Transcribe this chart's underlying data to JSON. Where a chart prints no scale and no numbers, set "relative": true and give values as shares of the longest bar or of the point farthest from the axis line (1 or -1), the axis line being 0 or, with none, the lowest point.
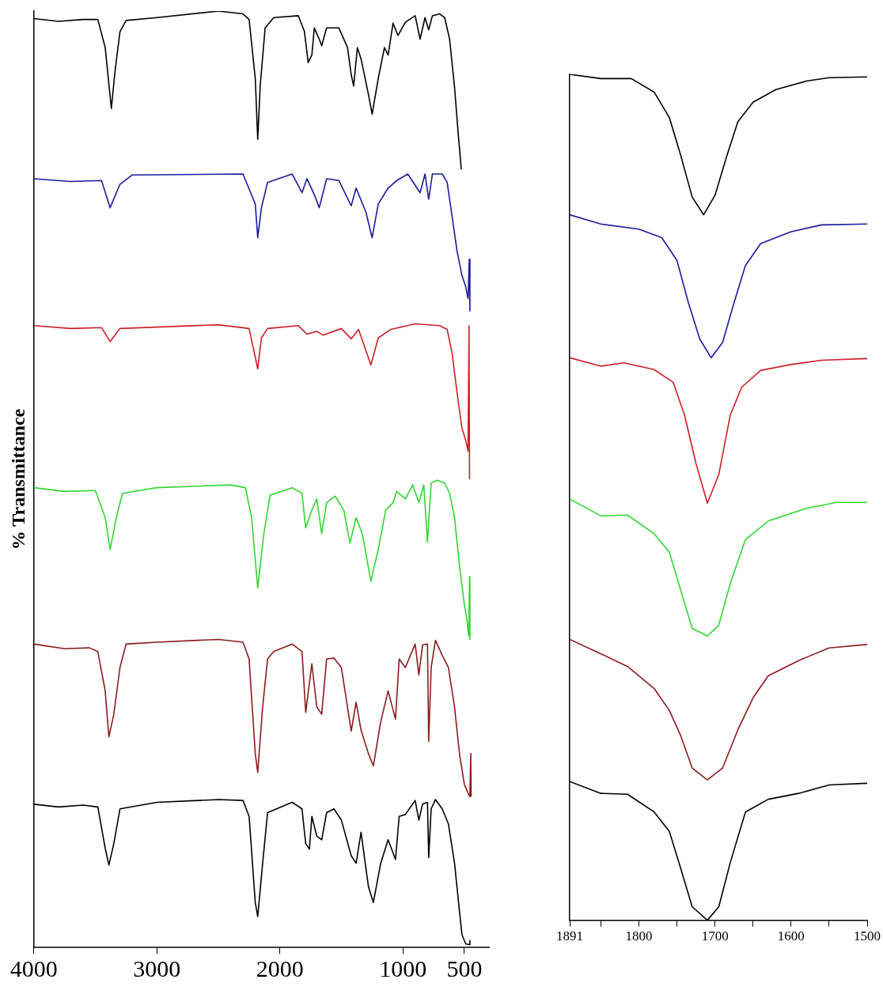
{
  "chart_data": [
    {
      "type": "line",
      "relative": true,
      "ylabel": "% Transmittance",
      "xlim": [
        4000,
        300
      ],
      "xticks": [
        4000,
        3000,
        2000,
        1000,
        500
      ],
      "series": [
        {
          "color": "#000000",
          "x": [
            4000,
            3800,
            3600,
            3480,
            3420,
            3370,
            3340,
            3300,
            3250,
            3000,
            2500,
            2300,
            2250,
            2200,
            2180,
            2160,
            2120,
            2050,
            1850,
            1800,
            1770,
            1740,
            1720,
            1680,
            1660,
            1620,
            1520,
            1450,
            1420,
            1400,
            1370,
            1340,
            1280,
            1250,
            1200,
            1150,
            1120,
            1080,
            1040,
            980,
            900,
            860,
            820,
            790,
            760,
            700,
            660,
            620,
            580,
            550,
            525
          ],
          "values": [
            0.992,
            0.989,
            0.991,
            0.991,
            0.961,
            0.896,
            0.936,
            0.978,
            0.99,
            0.993,
            1.0,
            0.997,
            0.991,
            0.928,
            0.863,
            0.92,
            0.982,
            0.993,
            0.995,
            0.978,
            0.945,
            0.953,
            0.982,
            0.97,
            0.963,
            0.982,
            0.982,
            0.961,
            0.932,
            0.92,
            0.961,
            0.949,
            0.911,
            0.89,
            0.928,
            0.961,
            0.953,
            0.987,
            0.974,
            0.988,
            0.995,
            0.97,
            0.993,
            0.98,
            0.995,
            0.997,
            0.993,
            0.97,
            0.919,
            0.869,
            0.831
          ]
        },
        {
          "color": "#1c1c9c",
          "x": [
            4000,
            3700,
            3450,
            3380,
            3300,
            3200,
            2300,
            2200,
            2180,
            2150,
            2100,
            1900,
            1820,
            1780,
            1720,
            1680,
            1620,
            1520,
            1420,
            1380,
            1300,
            1250,
            1200,
            1120,
            1050,
            960,
            860,
            820,
            790,
            760,
            680,
            640,
            600,
            560,
            520,
            490,
            470,
            460,
            455
          ],
          "values": [
            0.821,
            0.818,
            0.819,
            0.79,
            0.815,
            0.825,
            0.826,
            0.794,
            0.758,
            0.79,
            0.817,
            0.826,
            0.806,
            0.821,
            0.804,
            0.79,
            0.821,
            0.819,
            0.792,
            0.811,
            0.785,
            0.758,
            0.794,
            0.811,
            0.819,
            0.826,
            0.806,
            0.826,
            0.799,
            0.826,
            0.826,
            0.817,
            0.781,
            0.744,
            0.718,
            0.706,
            0.693,
            0.735,
            0.68
          ]
        },
        {
          "color": "#cc1f2a",
          "x": [
            4000,
            3700,
            3450,
            3380,
            3300,
            2500,
            2250,
            2180,
            2150,
            2100,
            1850,
            1780,
            1700,
            1650,
            1500,
            1420,
            1360,
            1260,
            1200,
            1100,
            900,
            700,
            640,
            600,
            560,
            520,
            490,
            470,
            462,
            458
          ],
          "values": [
            0.664,
            0.661,
            0.662,
            0.647,
            0.661,
            0.665,
            0.661,
            0.618,
            0.651,
            0.661,
            0.664,
            0.655,
            0.658,
            0.654,
            0.661,
            0.65,
            0.66,
            0.622,
            0.651,
            0.66,
            0.666,
            0.664,
            0.66,
            0.635,
            0.593,
            0.555,
            0.542,
            0.53,
            0.664,
            0.5
          ]
        },
        {
          "color": "#33d633",
          "x": [
            4000,
            3750,
            3500,
            3420,
            3380,
            3330,
            3280,
            3000,
            2400,
            2280,
            2230,
            2180,
            2130,
            2080,
            1900,
            1820,
            1790,
            1740,
            1700,
            1660,
            1620,
            1550,
            1480,
            1430,
            1380,
            1330,
            1260,
            1200,
            1140,
            1080,
            1050,
            980,
            920,
            870,
            830,
            800,
            770,
            720,
            660,
            620,
            580,
            540,
            500,
            480,
            465,
            458,
            455
          ],
          "values": [
            0.491,
            0.487,
            0.488,
            0.459,
            0.425,
            0.459,
            0.485,
            0.491,
            0.494,
            0.491,
            0.459,
            0.384,
            0.442,
            0.483,
            0.491,
            0.485,
            0.448,
            0.467,
            0.479,
            0.442,
            0.475,
            0.482,
            0.467,
            0.432,
            0.459,
            0.442,
            0.391,
            0.425,
            0.467,
            0.475,
            0.487,
            0.479,
            0.494,
            0.475,
            0.494,
            0.433,
            0.496,
            0.499,
            0.496,
            0.485,
            0.459,
            0.408,
            0.366,
            0.35,
            0.333,
            0.396,
            0.329
          ]
        },
        {
          "color": "#8b1c1c",
          "x": [
            4000,
            3750,
            3550,
            3480,
            3420,
            3390,
            3350,
            3300,
            3250,
            3000,
            2500,
            2300,
            2250,
            2200,
            2180,
            2140,
            2100,
            2050,
            1900,
            1820,
            1790,
            1740,
            1700,
            1660,
            1620,
            1560,
            1500,
            1420,
            1380,
            1340,
            1280,
            1240,
            1180,
            1120,
            1060,
            1030,
            980,
            900,
            870,
            840,
            800,
            790,
            770,
            735,
            680,
            630,
            580,
            540,
            500,
            470,
            455,
            448,
            445
          ],
          "values": [
            0.324,
            0.319,
            0.32,
            0.316,
            0.274,
            0.225,
            0.249,
            0.299,
            0.324,
            0.326,
            0.329,
            0.326,
            0.308,
            0.207,
            0.187,
            0.257,
            0.308,
            0.316,
            0.324,
            0.316,
            0.251,
            0.303,
            0.257,
            0.249,
            0.308,
            0.309,
            0.299,
            0.231,
            0.262,
            0.232,
            0.207,
            0.194,
            0.241,
            0.274,
            0.244,
            0.308,
            0.299,
            0.324,
            0.291,
            0.323,
            0.324,
            0.22,
            0.299,
            0.328,
            0.312,
            0.299,
            0.257,
            0.207,
            0.174,
            0.165,
            0.161,
            0.207,
            0.161
          ]
        },
        {
          "color": "#000000",
          "x": [
            4000,
            3800,
            3600,
            3480,
            3420,
            3390,
            3350,
            3300,
            3000,
            2500,
            2300,
            2250,
            2200,
            2180,
            2140,
            2100,
            1900,
            1820,
            1790,
            1760,
            1740,
            1700,
            1660,
            1620,
            1560,
            1500,
            1420,
            1380,
            1340,
            1280,
            1240,
            1180,
            1120,
            1060,
            1030,
            980,
            900,
            870,
            840,
            800,
            790,
            770,
            735,
            680,
            630,
            580,
            540,
            520,
            490,
            460,
            455
          ],
          "values": [
            0.153,
            0.15,
            0.152,
            0.15,
            0.106,
            0.088,
            0.111,
            0.148,
            0.155,
            0.158,
            0.157,
            0.14,
            0.048,
            0.033,
            0.09,
            0.144,
            0.155,
            0.148,
            0.111,
            0.105,
            0.14,
            0.119,
            0.115,
            0.144,
            0.148,
            0.136,
            0.098,
            0.09,
            0.123,
            0.065,
            0.048,
            0.09,
            0.115,
            0.094,
            0.14,
            0.142,
            0.157,
            0.136,
            0.153,
            0.155,
            0.096,
            0.148,
            0.158,
            0.148,
            0.132,
            0.09,
            0.039,
            0.014,
            0.004,
            0.003,
            0.008
          ]
        }
      ]
    },
    {
      "type": "line",
      "relative": true,
      "xlim": [
        1891,
        1500
      ],
      "xticks": [
        1891,
        {
          "value": 1850,
          "label": null
        },
        1800,
        {
          "value": 1750,
          "label": null
        },
        1700,
        {
          "value": 1650,
          "label": null
        },
        1600,
        {
          "value": 1550,
          "label": null
        },
        1500
      ],
      "series": [
        {
          "color": "#000000",
          "x": [
            1891,
            1850,
            1810,
            1780,
            1760,
            1745,
            1730,
            1715,
            1700,
            1685,
            1670,
            1650,
            1620,
            1580,
            1550,
            1500
          ],
          "values": [
            1.0,
            0.995,
            0.995,
            0.979,
            0.949,
            0.904,
            0.855,
            0.834,
            0.857,
            0.902,
            0.944,
            0.967,
            0.982,
            0.992,
            0.996,
            0.997
          ]
        },
        {
          "color": "#1c1c9c",
          "x": [
            1891,
            1850,
            1800,
            1770,
            1750,
            1735,
            1720,
            1705,
            1690,
            1675,
            1660,
            1640,
            1600,
            1560,
            1500
          ],
          "values": [
            0.834,
            0.823,
            0.817,
            0.807,
            0.78,
            0.73,
            0.687,
            0.665,
            0.683,
            0.73,
            0.774,
            0.8,
            0.814,
            0.822,
            0.823
          ]
        },
        {
          "color": "#cc1f2a",
          "x": [
            1891,
            1850,
            1820,
            1780,
            1755,
            1740,
            1725,
            1710,
            1695,
            1680,
            1665,
            1640,
            1600,
            1560,
            1500
          ],
          "values": [
            0.665,
            0.655,
            0.659,
            0.651,
            0.636,
            0.597,
            0.54,
            0.493,
            0.527,
            0.597,
            0.63,
            0.65,
            0.657,
            0.662,
            0.664
          ]
        },
        {
          "color": "#33d633",
          "x": [
            1891,
            1850,
            1815,
            1780,
            1760,
            1745,
            1730,
            1710,
            1695,
            1680,
            1660,
            1630,
            1580,
            1540,
            1500
          ],
          "values": [
            0.498,
            0.478,
            0.479,
            0.457,
            0.435,
            0.39,
            0.345,
            0.336,
            0.349,
            0.398,
            0.45,
            0.472,
            0.487,
            0.494,
            0.494
          ]
        },
        {
          "color": "#8b1c1c",
          "x": [
            1891,
            1850,
            1815,
            1780,
            1760,
            1745,
            1730,
            1710,
            1690,
            1670,
            1650,
            1630,
            1590,
            1550,
            1500
          ],
          "values": [
            0.332,
            0.315,
            0.3,
            0.274,
            0.248,
            0.218,
            0.18,
            0.166,
            0.18,
            0.225,
            0.263,
            0.289,
            0.307,
            0.322,
            0.326
          ]
        },
        {
          "color": "#000000",
          "x": [
            1891,
            1850,
            1815,
            1780,
            1760,
            1745,
            1730,
            1710,
            1695,
            1680,
            1660,
            1630,
            1590,
            1550,
            1500
          ],
          "values": [
            0.164,
            0.15,
            0.149,
            0.128,
            0.105,
            0.061,
            0.016,
            0,
            0.016,
            0.068,
            0.128,
            0.143,
            0.15,
            0.16,
            0.162
          ]
        }
      ]
    }
  ]
}
